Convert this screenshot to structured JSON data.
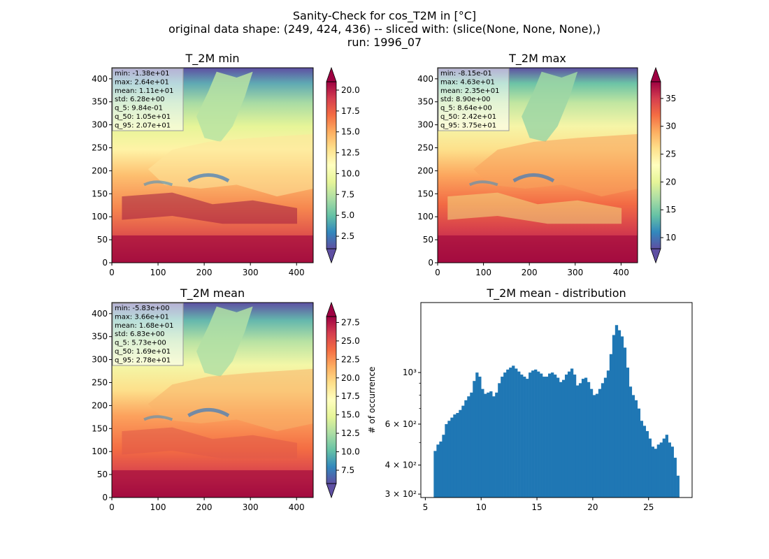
{
  "figure": {
    "suptitle_lines": [
      "Sanity-Check for cos_T2M in [°C]",
      "original data shape: (249, 424, 436) -- sliced with: (slice(None, None, None),)",
      "run: 1996_07"
    ]
  },
  "chart_data": [
    {
      "type": "heatmap",
      "title": "T_2M min",
      "colormap": "Spectral_r",
      "xticks": [
        0,
        100,
        200,
        300,
        400
      ],
      "yticks": [
        0,
        50,
        100,
        150,
        200,
        250,
        300,
        350,
        400
      ],
      "xlim": [
        0,
        436
      ],
      "ylim": [
        0,
        424
      ],
      "colorbar": {
        "ticks": [
          "2.5",
          "5.0",
          "7.5",
          "10.0",
          "12.5",
          "15.0",
          "17.5",
          "20.0"
        ],
        "range": [
          1.0,
          21.0
        ],
        "extend": "both"
      },
      "stats": [
        "min: -1.38e+01",
        "max: 2.64e+01",
        "mean: 1.11e+01",
        "std: 6.28e+00",
        "q_5: 9.84e-01",
        "q_50: 1.05e+01",
        "q_95: 2.07e+01"
      ]
    },
    {
      "type": "heatmap",
      "title": "T_2M max",
      "colormap": "Spectral_r",
      "xticks": [
        0,
        100,
        200,
        300,
        400
      ],
      "yticks": [
        0,
        50,
        100,
        150,
        200,
        250,
        300,
        350,
        400
      ],
      "xlim": [
        0,
        436
      ],
      "ylim": [
        0,
        424
      ],
      "colorbar": {
        "ticks": [
          "10",
          "15",
          "20",
          "25",
          "30",
          "35"
        ],
        "range": [
          8.0,
          38.0
        ],
        "extend": "both"
      },
      "stats": [
        "min: -8.15e-01",
        "max: 4.63e+01",
        "mean: 2.35e+01",
        "std: 8.90e+00",
        "q_5: 8.64e+00",
        "q_50: 2.42e+01",
        "q_95: 3.75e+01"
      ]
    },
    {
      "type": "heatmap",
      "title": "T_2M mean",
      "colormap": "Spectral_r",
      "xticks": [
        0,
        100,
        200,
        300,
        400
      ],
      "yticks": [
        0,
        50,
        100,
        150,
        200,
        250,
        300,
        350,
        400
      ],
      "xlim": [
        0,
        436
      ],
      "ylim": [
        0,
        424
      ],
      "colorbar": {
        "ticks": [
          "7.5",
          "10.0",
          "12.5",
          "15.0",
          "17.5",
          "20.0",
          "22.5",
          "25.0",
          "27.5"
        ],
        "range": [
          5.7,
          28.3
        ],
        "extend": "both"
      },
      "stats": [
        "min: -5.83e+00",
        "max: 3.66e+01",
        "mean: 1.68e+01",
        "std: 6.83e+00",
        "q_5: 5.73e+00",
        "q_50: 1.69e+01",
        "q_95: 2.78e+01"
      ]
    },
    {
      "type": "bar",
      "title": "T_2M mean - distribution",
      "ylabel": "# of occurrence",
      "yscale": "log",
      "xlim": [
        4.6,
        28.9
      ],
      "ylim": [
        290,
        2000
      ],
      "xticks": [
        "5",
        "10",
        "15",
        "20",
        "25"
      ],
      "yticks": [
        {
          "value": 300,
          "label": "3 × 10²"
        },
        {
          "value": 400,
          "label": "4 × 10²"
        },
        {
          "value": 600,
          "label": "6 × 10²"
        },
        {
          "value": 1000,
          "label": "10³"
        }
      ],
      "bar_color": "#1f77b4",
      "bins": [
        [
          5.75,
          460
        ],
        [
          6.0,
          490
        ],
        [
          6.25,
          505
        ],
        [
          6.5,
          540
        ],
        [
          6.75,
          600
        ],
        [
          7.0,
          620
        ],
        [
          7.25,
          640
        ],
        [
          7.5,
          660
        ],
        [
          7.75,
          670
        ],
        [
          8.0,
          690
        ],
        [
          8.25,
          720
        ],
        [
          8.5,
          760
        ],
        [
          8.75,
          790
        ],
        [
          9.0,
          820
        ],
        [
          9.25,
          920
        ],
        [
          9.5,
          1000
        ],
        [
          9.75,
          960
        ],
        [
          10.0,
          850
        ],
        [
          10.25,
          810
        ],
        [
          10.5,
          820
        ],
        [
          10.75,
          830
        ],
        [
          11.0,
          790
        ],
        [
          11.25,
          820
        ],
        [
          11.5,
          900
        ],
        [
          11.75,
          960
        ],
        [
          12.0,
          1000
        ],
        [
          12.25,
          1030
        ],
        [
          12.5,
          1050
        ],
        [
          12.75,
          1070
        ],
        [
          13.0,
          1040
        ],
        [
          13.25,
          1010
        ],
        [
          13.5,
          980
        ],
        [
          13.75,
          960
        ],
        [
          14.0,
          940
        ],
        [
          14.25,
          1000
        ],
        [
          14.5,
          1020
        ],
        [
          14.75,
          1030
        ],
        [
          15.0,
          1010
        ],
        [
          15.25,
          990
        ],
        [
          15.5,
          960
        ],
        [
          15.75,
          960
        ],
        [
          16.0,
          990
        ],
        [
          16.25,
          1000
        ],
        [
          16.5,
          980
        ],
        [
          16.75,
          950
        ],
        [
          17.0,
          910
        ],
        [
          17.25,
          930
        ],
        [
          17.5,
          980
        ],
        [
          17.75,
          1010
        ],
        [
          18.0,
          1040
        ],
        [
          18.25,
          980
        ],
        [
          18.5,
          880
        ],
        [
          18.75,
          900
        ],
        [
          19.0,
          940
        ],
        [
          19.25,
          950
        ],
        [
          19.5,
          910
        ],
        [
          19.75,
          850
        ],
        [
          20.0,
          800
        ],
        [
          20.25,
          810
        ],
        [
          20.5,
          850
        ],
        [
          20.75,
          900
        ],
        [
          21.0,
          950
        ],
        [
          21.25,
          1020
        ],
        [
          21.5,
          1200
        ],
        [
          21.75,
          1450
        ],
        [
          22.0,
          1600
        ],
        [
          22.25,
          1520
        ],
        [
          22.5,
          1430
        ],
        [
          22.75,
          1280
        ],
        [
          23.0,
          1050
        ],
        [
          23.25,
          870
        ],
        [
          23.5,
          800
        ],
        [
          23.75,
          760
        ],
        [
          24.0,
          700
        ],
        [
          24.25,
          620
        ],
        [
          24.5,
          590
        ],
        [
          24.75,
          560
        ],
        [
          25.0,
          520
        ],
        [
          25.25,
          480
        ],
        [
          25.5,
          470
        ],
        [
          25.75,
          490
        ],
        [
          26.0,
          500
        ],
        [
          26.25,
          520
        ],
        [
          26.5,
          540
        ],
        [
          26.75,
          500
        ],
        [
          27.0,
          480
        ],
        [
          27.25,
          430
        ],
        [
          27.5,
          360
        ]
      ]
    }
  ]
}
